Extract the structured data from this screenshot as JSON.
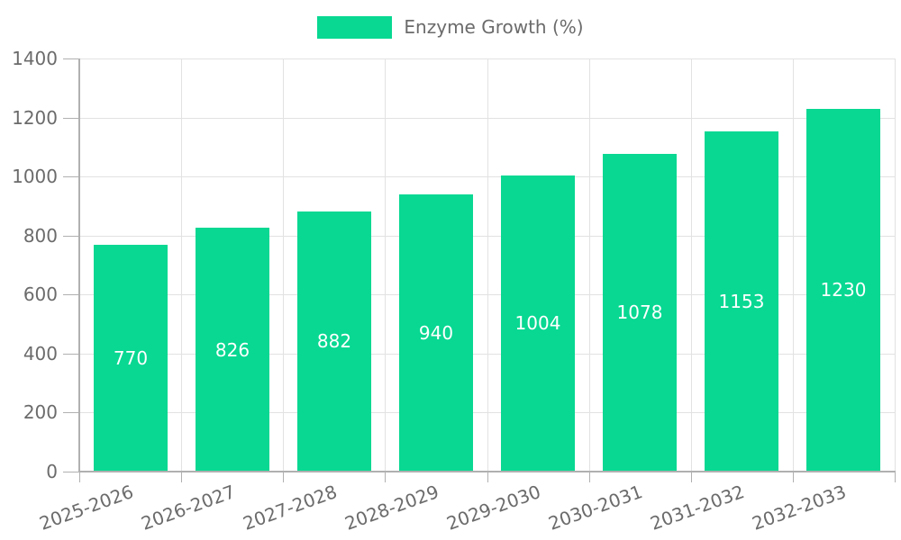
{
  "chart_data": {
    "type": "bar",
    "title": "",
    "series_name": "Enzyme Growth (%)",
    "categories": [
      "2025-2026",
      "2026-2027",
      "2027-2028",
      "2028-2029",
      "2029-2030",
      "2030-2031",
      "2031-2032",
      "2032-2033"
    ],
    "values": [
      770,
      826,
      882,
      940,
      1004,
      1078,
      1153,
      1230
    ],
    "xlabel": "",
    "ylabel": "",
    "ylim": [
      0,
      1400
    ],
    "ytick_step": 200,
    "yticks": [
      0,
      200,
      400,
      600,
      800,
      1000,
      1200,
      1400
    ],
    "grid": true,
    "legend_position": "top",
    "bar_value_labels_shown": true,
    "colors": {
      "bar": "#08d892",
      "bar_value_label": "#ffffff",
      "axis_text": "#6b6b6b",
      "grid": "#e2e2e2",
      "axis_line": "#b0b0b0",
      "background": "#ffffff"
    }
  }
}
